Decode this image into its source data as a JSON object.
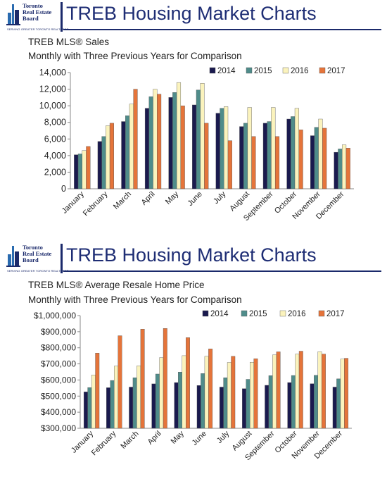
{
  "header": {
    "logo_line1": "Toronto",
    "logo_line2": "Real Estate",
    "logo_line3": "Board",
    "logo_tagline": "SERVING GREATER TORONTO REALTORS®",
    "title": "TREB Housing Market Charts"
  },
  "colors": {
    "brand": "#1b2a6b",
    "s2014": "#1a1a4e",
    "s2015": "#4f8c8a",
    "s2016": "#fbf3bd",
    "s2017": "#e5743a"
  },
  "chart_data": [
    {
      "type": "bar",
      "title": "TREB MLS® Sales",
      "subtitle": "Monthly with Three Previous Years for Comparison",
      "categories": [
        "January",
        "February",
        "March",
        "April",
        "May",
        "June",
        "July",
        "August",
        "September",
        "October",
        "November",
        "December"
      ],
      "ylim": [
        0,
        14000
      ],
      "yticks": [
        "0",
        "2,000",
        "4,000",
        "6,000",
        "8,000",
        "10,000",
        "12,000",
        "14,000"
      ],
      "legend_position": "top-right",
      "grid": false,
      "series": [
        {
          "name": "2014",
          "values": [
            4100,
            5700,
            8100,
            9700,
            11000,
            10100,
            9100,
            7500,
            7900,
            8400,
            6400,
            4400
          ]
        },
        {
          "name": "2015",
          "values": [
            4200,
            6300,
            8800,
            11100,
            11600,
            11900,
            9700,
            7900,
            8100,
            8700,
            7400,
            4800
          ]
        },
        {
          "name": "2016",
          "values": [
            4600,
            7600,
            10200,
            12000,
            12800,
            12700,
            9900,
            9800,
            9800,
            9700,
            8400,
            5300
          ]
        },
        {
          "name": "2017",
          "values": [
            5100,
            7900,
            12000,
            11400,
            10000,
            7900,
            5800,
            6300,
            6300,
            7100,
            7300,
            4900
          ]
        }
      ]
    },
    {
      "type": "bar",
      "title": "TREB MLS® Average Resale Home Price",
      "subtitle": "Monthly with Three Previous Years for Comparison",
      "categories": [
        "January",
        "February",
        "March",
        "April",
        "May",
        "June",
        "July",
        "August",
        "September",
        "October",
        "November",
        "December"
      ],
      "ylim": [
        300000,
        1000000
      ],
      "yticks": [
        "$300,000",
        "$400,000",
        "$500,000",
        "$600,000",
        "$700,000",
        "$800,000",
        "$900,000",
        "$1,000,000"
      ],
      "legend_position": "top-right",
      "grid": false,
      "series": [
        {
          "name": "2014",
          "values": [
            526000,
            552000,
            556000,
            576000,
            584000,
            566000,
            556000,
            546000,
            567000,
            584000,
            577000,
            556000
          ]
        },
        {
          "name": "2015",
          "values": [
            553000,
            597000,
            614000,
            637000,
            649000,
            640000,
            614000,
            604000,
            627000,
            628000,
            629000,
            607000
          ]
        },
        {
          "name": "2016",
          "values": [
            631000,
            686000,
            688000,
            739000,
            751000,
            747000,
            709000,
            710000,
            756000,
            761000,
            776000,
            730000
          ]
        },
        {
          "name": "2017",
          "values": [
            767000,
            875000,
            916000,
            920000,
            863000,
            793000,
            747000,
            732000,
            775000,
            779000,
            761000,
            735000
          ]
        }
      ]
    }
  ]
}
